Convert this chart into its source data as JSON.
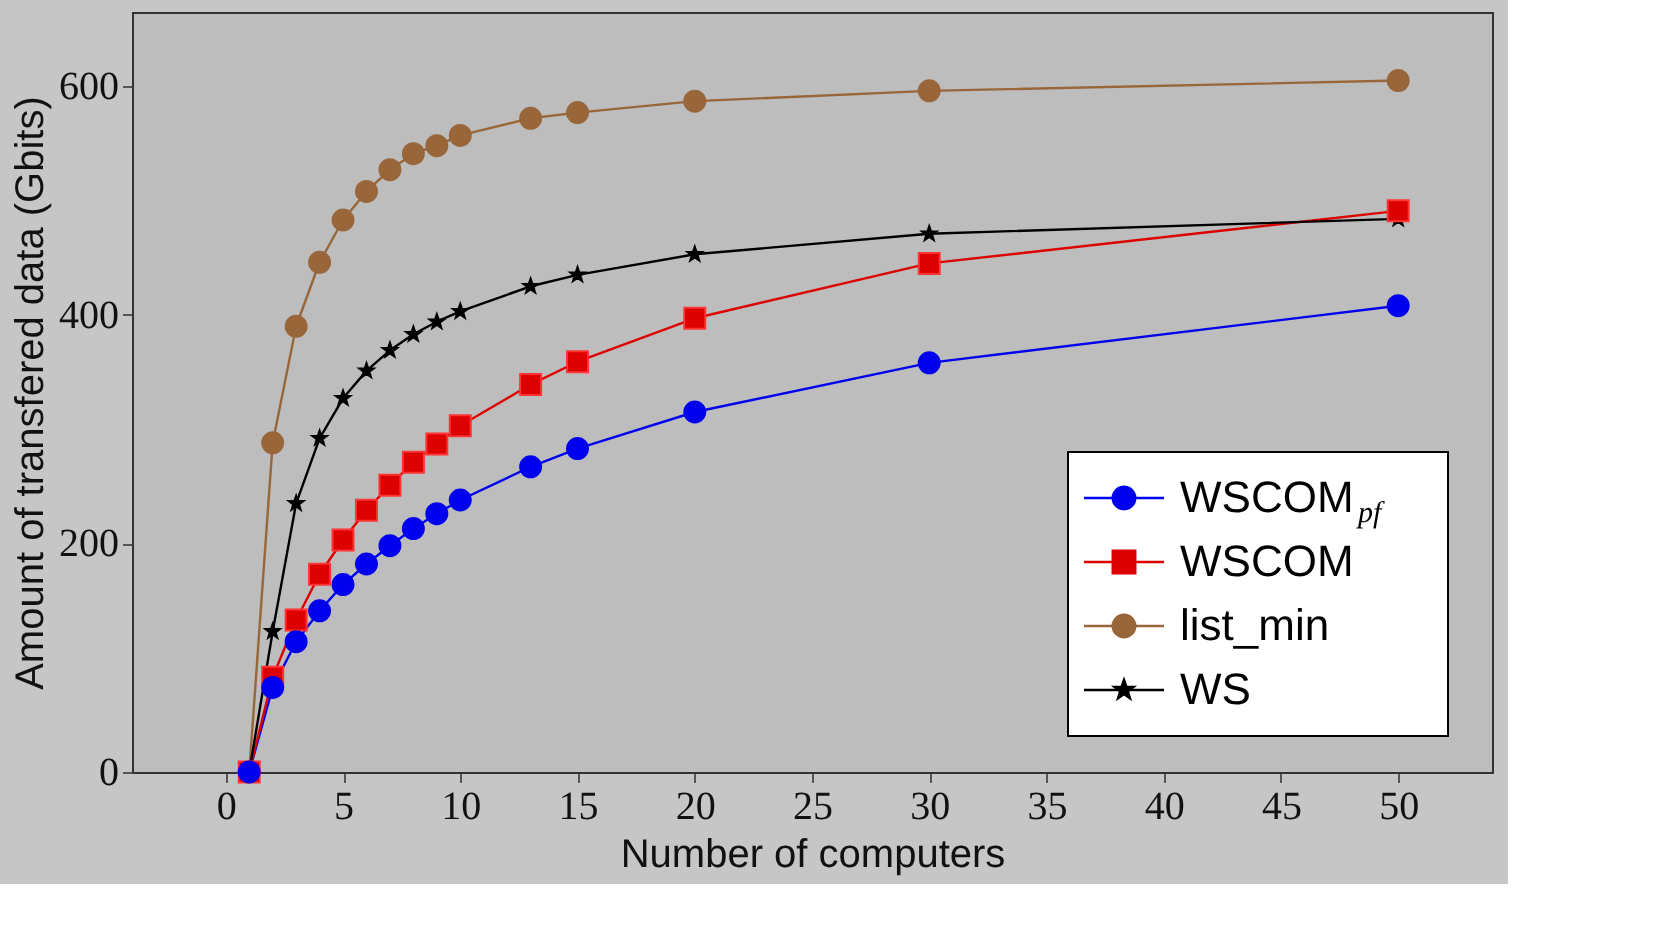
{
  "chart_data": {
    "type": "line",
    "xlabel": "Number of computers",
    "ylabel": "Amount of transfered data (Gbits)",
    "x": [
      1,
      2,
      3,
      4,
      5,
      6,
      7,
      8,
      9,
      10,
      13,
      15,
      20,
      30,
      50
    ],
    "series": [
      {
        "name": "WSCOM$_{pf}$",
        "color": "#0000ee",
        "marker": "circle",
        "values": [
          0,
          74,
          114,
          141,
          164,
          182,
          198,
          213,
          226,
          238,
          267,
          283,
          315,
          358,
          408
        ]
      },
      {
        "name": "WSCOM",
        "color": "#dd0000",
        "marker": "square",
        "values": [
          0,
          83,
          133,
          173,
          203,
          229,
          251,
          271,
          287,
          303,
          339,
          359,
          397,
          445,
          491
        ]
      },
      {
        "name": "list_min",
        "color": "#99663a",
        "marker": "circle",
        "values": [
          0,
          288,
          390,
          446,
          483,
          508,
          527,
          541,
          548,
          557,
          572,
          577,
          587,
          596,
          605
        ]
      },
      {
        "name": "WS",
        "color": "#000000",
        "marker": "star",
        "values": [
          0,
          123,
          235,
          292,
          327,
          351,
          369,
          383,
          394,
          403,
          425,
          435,
          453,
          471,
          484
        ]
      }
    ],
    "xlim": [
      -4,
      54
    ],
    "ylim": [
      0,
      665
    ],
    "xticks": [
      0,
      5,
      10,
      15,
      20,
      25,
      30,
      35,
      40,
      45,
      50
    ],
    "yticks": [
      0,
      200,
      400,
      600
    ],
    "grid": false,
    "legend": "bottom right",
    "line_style": "solid"
  }
}
